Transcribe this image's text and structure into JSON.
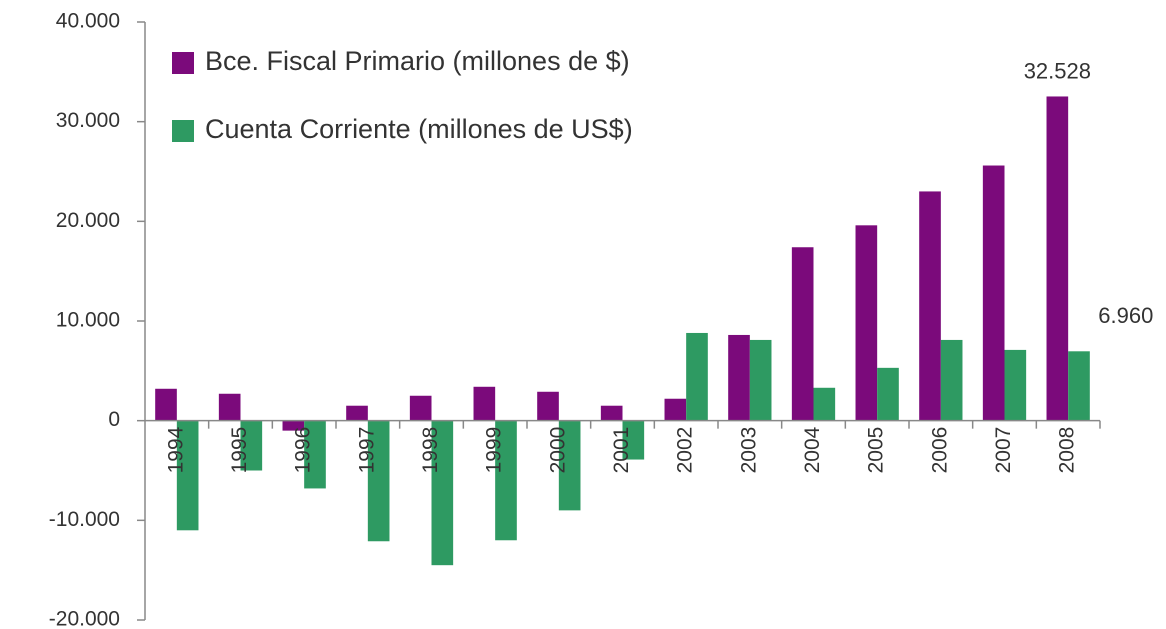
{
  "chart_data": {
    "type": "bar",
    "categories": [
      "1994",
      "1995",
      "1996",
      "1997",
      "1998",
      "1999",
      "2000",
      "2001",
      "2002",
      "2003",
      "2004",
      "2005",
      "2006",
      "2007",
      "2008"
    ],
    "series": [
      {
        "name": "Bce. Fiscal Primario (millones de $)",
        "color": "#7b0a7b",
        "values": [
          3200,
          2700,
          -1000,
          1500,
          2500,
          3400,
          2900,
          1500,
          2200,
          8600,
          17400,
          19600,
          23000,
          25600,
          32528
        ],
        "value_labels": [
          null,
          null,
          null,
          null,
          null,
          null,
          null,
          null,
          null,
          null,
          null,
          null,
          null,
          null,
          "32.528"
        ]
      },
      {
        "name": "Cuenta Corriente (millones de US$)",
        "color": "#2e9a62",
        "values": [
          -11000,
          -5000,
          -6800,
          -12100,
          -14500,
          -12000,
          -9000,
          -3900,
          8800,
          8100,
          3300,
          5300,
          8100,
          7100,
          6960
        ],
        "value_labels": [
          null,
          null,
          null,
          null,
          null,
          null,
          null,
          null,
          null,
          null,
          null,
          null,
          null,
          null,
          "6.960"
        ]
      }
    ],
    "ylim": [
      -20000,
      40000
    ],
    "yticks": [
      {
        "value": -20000,
        "label": "-20.000"
      },
      {
        "value": -10000,
        "label": "-10.000"
      },
      0,
      {
        "value": 10000,
        "label": "10.000"
      },
      {
        "value": 20000,
        "label": "20.000"
      },
      {
        "value": 30000,
        "label": "30.000"
      },
      {
        "value": 40000,
        "label": "40.000"
      }
    ],
    "grid": false,
    "legend": "top-left"
  }
}
